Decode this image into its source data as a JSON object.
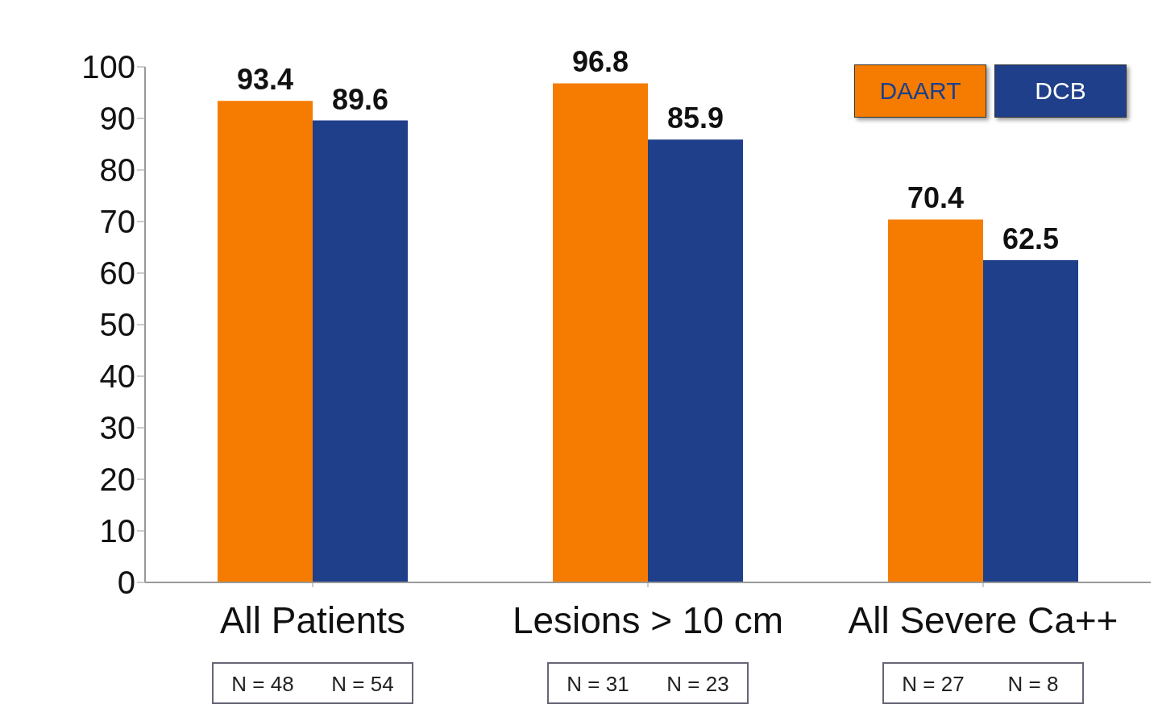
{
  "chart_data": {
    "type": "bar",
    "categories": [
      "All Patients",
      "Lesions > 10 cm",
      "All Severe Ca++"
    ],
    "series": [
      {
        "name": "DAART",
        "color": "#f57c00",
        "values": [
          93.4,
          96.8,
          70.4
        ]
      },
      {
        "name": "DCB",
        "color": "#1f3f8a",
        "values": [
          89.6,
          85.9,
          62.5
        ]
      }
    ],
    "ylim": [
      0,
      100
    ],
    "yticks": [
      0,
      10,
      20,
      30,
      40,
      50,
      60,
      70,
      80,
      90,
      100
    ],
    "grid": false,
    "legend": "top right",
    "data_labels": true,
    "annotations": [
      "N = 48",
      "N = 54",
      "N = 31",
      "N = 23",
      "N = 27",
      "N = 8"
    ]
  }
}
